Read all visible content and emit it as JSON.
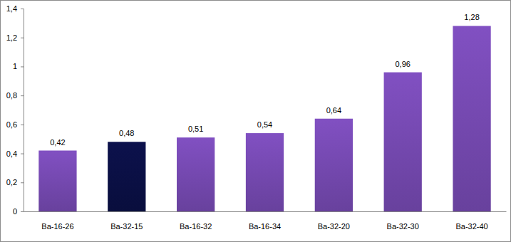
{
  "chart_data": {
    "type": "bar",
    "categories": [
      "Ba-16-26",
      "Ba-32-15",
      "Ba-16-32",
      "Ba-16-34",
      "Ba-32-20",
      "Ba-32-30",
      "Ba-32-40"
    ],
    "values": [
      0.42,
      0.48,
      0.51,
      0.54,
      0.64,
      0.96,
      1.28
    ],
    "value_labels": [
      "0,42",
      "0,48",
      "0,51",
      "0,54",
      "0,64",
      "0,96",
      "1,28"
    ],
    "colors": [
      "#7a4cb8",
      "#0b1048",
      "#7a4cb8",
      "#7a4cb8",
      "#7a4cb8",
      "#7a4cb8",
      "#7a4cb8"
    ],
    "ylim": [
      0,
      1.4
    ],
    "yticks": [
      0,
      {
        "value": 0.2,
        "label": "0,2"
      },
      {
        "value": 0.4,
        "label": "0,4"
      },
      {
        "value": 0.6,
        "label": "0,6"
      },
      {
        "value": 0.8,
        "label": "0,8"
      },
      1,
      {
        "value": 1.2,
        "label": "1,2"
      },
      {
        "value": 1.4,
        "label": "1,4"
      }
    ],
    "grid": false,
    "data_labels": true
  }
}
